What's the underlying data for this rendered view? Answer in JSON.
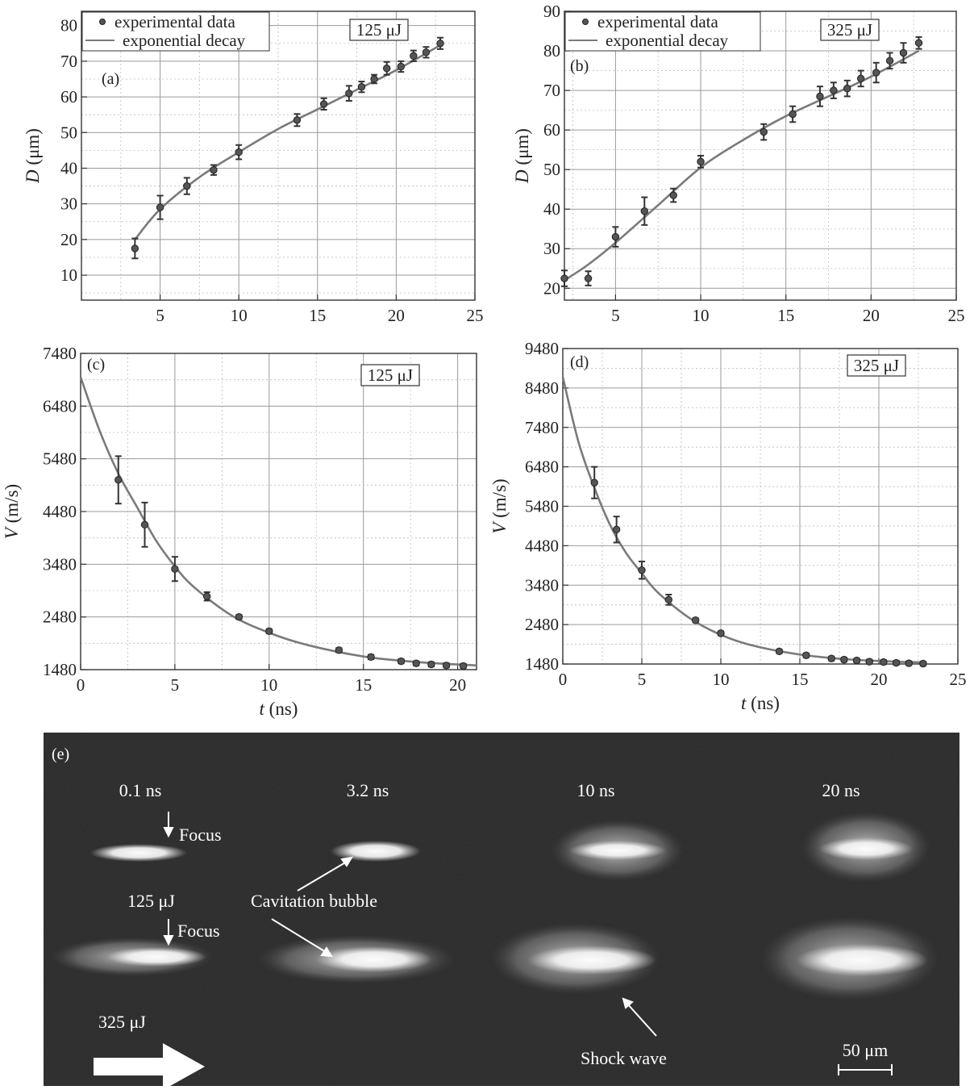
{
  "chart_data": [
    {
      "panel": "(a)",
      "type": "scatter",
      "energy": "125 μJ",
      "xlabel": "",
      "ylabel_var": "D",
      "ylabel_unit": "(μm)",
      "xlim": [
        0,
        25
      ],
      "ylim": [
        3,
        84
      ],
      "xticks": [
        5,
        10,
        15,
        20,
        25
      ],
      "yticks": [
        10,
        20,
        30,
        40,
        50,
        60,
        70,
        80
      ],
      "grid": true,
      "legend": {
        "position": "top-left",
        "entries": [
          "experimental data",
          "exponential decay"
        ]
      },
      "series": [
        {
          "name": "experimental data",
          "x": [
            3.4,
            5.0,
            6.7,
            8.4,
            10.0,
            13.7,
            15.4,
            17.0,
            17.8,
            18.6,
            19.4,
            20.3,
            21.1,
            21.9,
            22.8
          ],
          "y": [
            17.5,
            29.0,
            35.0,
            39.5,
            44.5,
            53.5,
            58.0,
            61.0,
            62.8,
            65.0,
            68.0,
            68.5,
            71.5,
            72.5,
            75.0
          ],
          "err": [
            2.8,
            3.3,
            2.3,
            1.4,
            2.0,
            1.7,
            1.6,
            2.1,
            1.5,
            1.2,
            1.8,
            1.5,
            1.5,
            1.5,
            1.6
          ]
        },
        {
          "name": "exponential decay",
          "x": [
            3.4,
            5,
            7.5,
            10,
            12.5,
            15,
            17.5,
            20,
            22.8
          ],
          "y": [
            20.0,
            28.5,
            37.5,
            44.5,
            51.0,
            56.5,
            62.0,
            67.5,
            74.5
          ]
        }
      ]
    },
    {
      "panel": "(b)",
      "type": "scatter",
      "energy": "325 μJ",
      "xlabel": "",
      "ylabel_var": "D",
      "ylabel_unit": "(μm)",
      "xlim": [
        2,
        25
      ],
      "ylim": [
        17,
        90
      ],
      "xticks": [
        5,
        10,
        15,
        20,
        25
      ],
      "yticks": [
        20,
        30,
        40,
        50,
        60,
        70,
        80,
        90
      ],
      "grid": true,
      "legend": {
        "position": "top-left",
        "entries": [
          "experimental data",
          "exponential decay"
        ]
      },
      "series": [
        {
          "name": "experimental data",
          "x": [
            2.0,
            3.4,
            5.0,
            6.7,
            8.4,
            10.0,
            13.7,
            15.4,
            17.0,
            17.8,
            18.6,
            19.4,
            20.3,
            21.1,
            21.9,
            22.8
          ],
          "y": [
            22.5,
            22.5,
            33.0,
            39.5,
            43.5,
            52.0,
            59.5,
            64.0,
            68.5,
            70.0,
            70.5,
            73.0,
            74.5,
            77.5,
            79.5,
            82.0
          ],
          "err": [
            2.0,
            1.8,
            2.5,
            3.5,
            1.7,
            1.5,
            2.0,
            2.0,
            2.5,
            2.0,
            2.0,
            2.0,
            2.5,
            2.0,
            2.5,
            1.5
          ]
        },
        {
          "name": "exponential decay",
          "x": [
            2,
            3.4,
            5,
            7.5,
            10,
            12.5,
            15,
            17.5,
            20,
            22.8
          ],
          "y": [
            22.0,
            26.0,
            31.5,
            41.0,
            50.5,
            57.5,
            63.5,
            68.5,
            73.5,
            80.0
          ]
        }
      ]
    },
    {
      "panel": "(c)",
      "type": "scatter",
      "energy": "125 μJ",
      "xlabel_var": "t",
      "xlabel_unit": "(ns)",
      "ylabel_var": "V",
      "ylabel_unit": "(m/s)",
      "xlim": [
        0,
        21
      ],
      "ylim": [
        1480,
        7480
      ],
      "xticks": [
        0,
        5,
        10,
        15,
        20
      ],
      "yticks": [
        1480,
        2480,
        3480,
        4480,
        5480,
        6480,
        7480
      ],
      "grid": true,
      "series": [
        {
          "name": "experimental data",
          "x": [
            2.0,
            3.4,
            5.0,
            6.7,
            8.4,
            10.0,
            13.7,
            15.4,
            17.0,
            17.8,
            18.6,
            19.4,
            20.3
          ],
          "y": [
            5080,
            4230,
            3390,
            2870,
            2480,
            2210,
            1850,
            1720,
            1640,
            1600,
            1580,
            1560,
            1550
          ],
          "err": [
            450,
            420,
            230,
            80,
            40,
            40,
            40,
            40,
            40,
            40,
            40,
            40,
            40
          ]
        },
        {
          "name": "exponential decay",
          "x": [
            0,
            1,
            2,
            3,
            4,
            5,
            6,
            8,
            10,
            12,
            15,
            18,
            21
          ],
          "y": [
            7030,
            6020,
            5200,
            4560,
            3930,
            3440,
            3050,
            2510,
            2180,
            1950,
            1730,
            1620,
            1560
          ]
        }
      ]
    },
    {
      "panel": "(d)",
      "type": "scatter",
      "energy": "325 μJ",
      "xlabel_var": "t",
      "xlabel_unit": "(ns)",
      "ylabel_var": "V",
      "ylabel_unit": "(m/s)",
      "xlim": [
        0,
        25
      ],
      "ylim": [
        1480,
        9480
      ],
      "xticks": [
        0,
        5,
        10,
        15,
        20,
        25
      ],
      "yticks": [
        1480,
        2480,
        3480,
        4480,
        5480,
        6480,
        7480,
        8480,
        9480
      ],
      "grid": true,
      "series": [
        {
          "name": "experimental data",
          "x": [
            2.0,
            3.4,
            5.0,
            6.7,
            8.4,
            10.0,
            13.7,
            15.4,
            17.0,
            17.8,
            18.6,
            19.4,
            20.3,
            21.1,
            21.9,
            22.8
          ],
          "y": [
            6080,
            4890,
            3860,
            3110,
            2590,
            2260,
            1800,
            1700,
            1620,
            1590,
            1570,
            1540,
            1530,
            1510,
            1500,
            1490
          ],
          "err": [
            400,
            330,
            220,
            130,
            50,
            50,
            50,
            50,
            50,
            50,
            50,
            50,
            50,
            50,
            50,
            50
          ]
        },
        {
          "name": "exponential decay",
          "x": [
            0,
            1,
            2,
            3,
            4,
            5,
            6,
            8,
            10,
            12,
            15,
            18,
            21,
            23
          ],
          "y": [
            8760,
            7100,
            5950,
            5000,
            4300,
            3780,
            3300,
            2650,
            2220,
            1950,
            1720,
            1600,
            1540,
            1520
          ]
        }
      ]
    }
  ],
  "panel_e": {
    "label": "(e)",
    "times": [
      "0.1 ns",
      "3.2 ns",
      "10 ns",
      "20 ns"
    ],
    "energy_top": "125 μJ",
    "energy_bottom": "325 μJ",
    "annotations": {
      "focus_top": "Focus",
      "focus_bottom": "Focus",
      "cavitation": "Cavitation bubble",
      "shock": "Shock wave"
    },
    "scalebar": "50 μm"
  }
}
